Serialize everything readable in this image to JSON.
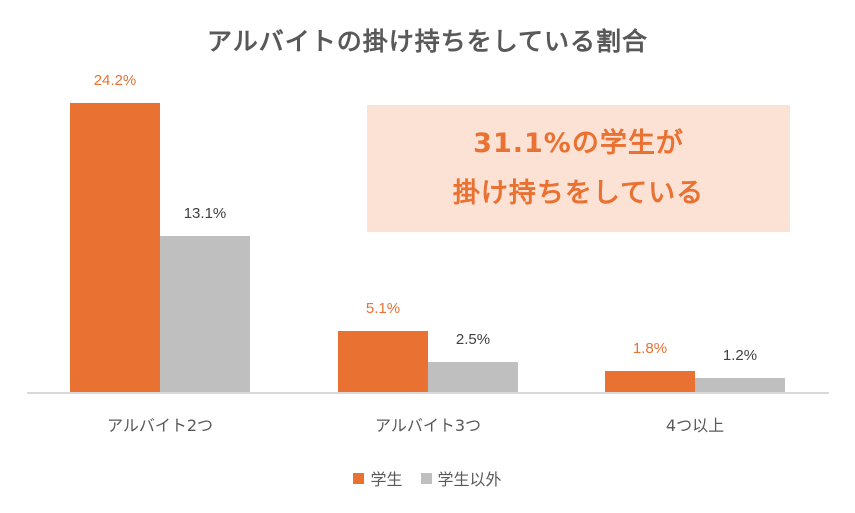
{
  "title": "アルバイトの掛け持ちをしている割合",
  "callout": {
    "line1": "31.1%の学生が",
    "line2": "掛け持ちをしている"
  },
  "legend": [
    {
      "label": "学生",
      "color": "#e97132"
    },
    {
      "label": "学生以外",
      "color": "#bfbfbf"
    }
  ],
  "categories": [
    "アルバイト2つ",
    "アルバイト3つ",
    "4つ以上"
  ],
  "labels": {
    "s1": [
      "24.2%",
      "5.1%",
      "1.8%"
    ],
    "s2": [
      "13.1%",
      "2.5%",
      "1.2%"
    ]
  },
  "chart_data": {
    "type": "bar",
    "title": "アルバイトの掛け持ちをしている割合",
    "categories": [
      "アルバイト2つ",
      "アルバイト3つ",
      "4つ以上"
    ],
    "series": [
      {
        "name": "学生",
        "values": [
          24.2,
          5.1,
          1.8
        ],
        "color": "#e97132"
      },
      {
        "name": "学生以外",
        "values": [
          13.1,
          2.5,
          1.2
        ],
        "color": "#bfbfbf"
      }
    ],
    "xlabel": "",
    "ylabel": "",
    "unit": "%",
    "grid": false,
    "legend_position": "bottom",
    "annotations": [
      "31.1%の学生が掛け持ちをしている"
    ]
  }
}
